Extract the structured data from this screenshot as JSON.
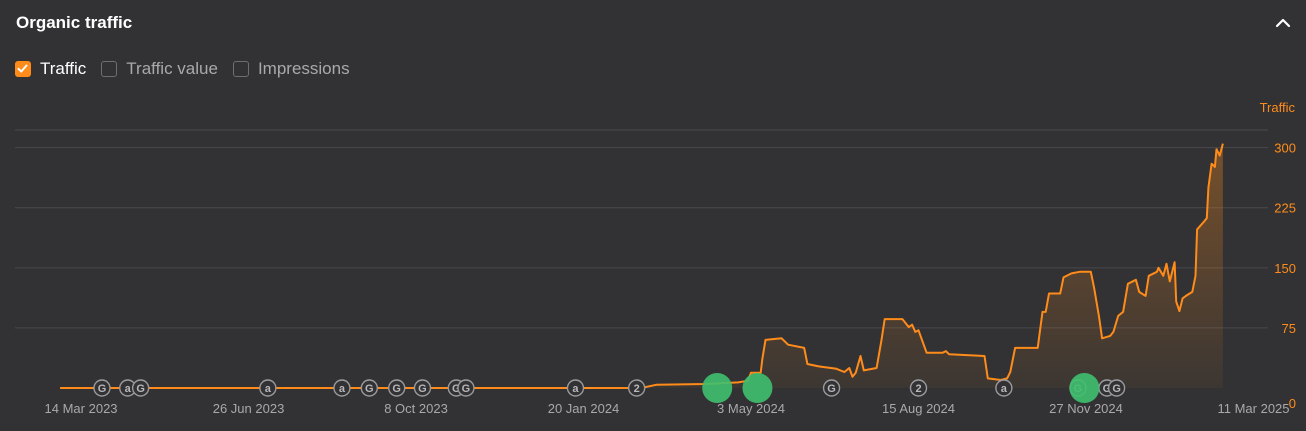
{
  "header": {
    "title": "Organic traffic",
    "collapse_icon": "chevron-up-icon"
  },
  "toggles": [
    {
      "label": "Traffic",
      "checked": true
    },
    {
      "label": "Traffic value",
      "checked": false
    },
    {
      "label": "Impressions",
      "checked": false
    }
  ],
  "colors": {
    "accent": "#ff8c1a",
    "grid": "#4a4a4d",
    "marker_green": "#3ec06e",
    "background": "#323234"
  },
  "chart_data": {
    "type": "area",
    "ylabel": "Traffic",
    "y_axis_position": "right",
    "ylim": [
      0,
      322
    ],
    "y_ticks": [
      0,
      75,
      150,
      225,
      300
    ],
    "x_start": "2023-02-01",
    "x_end": "2025-03-20",
    "x_tick_labels": [
      {
        "date": "2023-03-14",
        "label": "14 Mar 2023"
      },
      {
        "date": "2023-06-26",
        "label": "26 Jun 2023"
      },
      {
        "date": "2023-10-08",
        "label": "8 Oct 2023"
      },
      {
        "date": "2024-01-20",
        "label": "20 Jan 2024"
      },
      {
        "date": "2024-05-03",
        "label": "3 May 2024"
      },
      {
        "date": "2024-08-15",
        "label": "15 Aug 2024"
      },
      {
        "date": "2024-11-27",
        "label": "27 Nov 2024"
      },
      {
        "date": "2025-03-11",
        "label": "11 Mar 2025"
      }
    ],
    "grid": true,
    "series": [
      {
        "name": "Traffic",
        "points": [
          [
            "2023-03-01",
            0
          ],
          [
            "2024-02-25",
            0
          ],
          [
            "2024-03-05",
            4
          ],
          [
            "2024-04-05",
            5
          ],
          [
            "2024-04-25",
            7
          ],
          [
            "2024-05-01",
            9
          ],
          [
            "2024-05-03",
            19
          ],
          [
            "2024-05-09",
            19
          ],
          [
            "2024-05-10",
            36
          ],
          [
            "2024-05-12",
            60
          ],
          [
            "2024-05-22",
            62
          ],
          [
            "2024-05-26",
            54
          ],
          [
            "2024-06-05",
            50
          ],
          [
            "2024-06-07",
            30
          ],
          [
            "2024-06-14",
            27
          ],
          [
            "2024-06-25",
            24
          ],
          [
            "2024-06-30",
            20
          ],
          [
            "2024-07-03",
            25
          ],
          [
            "2024-07-05",
            14
          ],
          [
            "2024-07-07",
            19
          ],
          [
            "2024-07-10",
            40
          ],
          [
            "2024-07-12",
            22
          ],
          [
            "2024-07-20",
            25
          ],
          [
            "2024-07-23",
            60
          ],
          [
            "2024-07-25",
            86
          ],
          [
            "2024-08-05",
            86
          ],
          [
            "2024-08-09",
            76
          ],
          [
            "2024-08-11",
            79
          ],
          [
            "2024-08-13",
            70
          ],
          [
            "2024-08-15",
            72
          ],
          [
            "2024-08-20",
            44
          ],
          [
            "2024-08-30",
            44
          ],
          [
            "2024-09-01",
            46
          ],
          [
            "2024-09-03",
            42
          ],
          [
            "2024-09-25",
            40
          ],
          [
            "2024-09-27",
            12
          ],
          [
            "2024-10-05",
            10
          ],
          [
            "2024-10-09",
            12
          ],
          [
            "2024-10-11",
            20
          ],
          [
            "2024-10-14",
            50
          ],
          [
            "2024-10-28",
            50
          ],
          [
            "2024-10-31",
            95
          ],
          [
            "2024-11-02",
            95
          ],
          [
            "2024-11-04",
            118
          ],
          [
            "2024-11-11",
            118
          ],
          [
            "2024-11-13",
            138
          ],
          [
            "2024-11-18",
            143
          ],
          [
            "2024-11-23",
            145
          ],
          [
            "2024-11-30",
            145
          ],
          [
            "2024-12-02",
            125
          ],
          [
            "2024-12-05",
            90
          ],
          [
            "2024-12-07",
            62
          ],
          [
            "2024-12-12",
            65
          ],
          [
            "2024-12-14",
            70
          ],
          [
            "2024-12-17",
            90
          ],
          [
            "2024-12-20",
            95
          ],
          [
            "2024-12-23",
            130
          ],
          [
            "2024-12-28",
            135
          ],
          [
            "2024-12-30",
            120
          ],
          [
            "2025-01-03",
            115
          ],
          [
            "2025-01-05",
            140
          ],
          [
            "2025-01-10",
            145
          ],
          [
            "2025-01-11",
            150
          ],
          [
            "2025-01-14",
            140
          ],
          [
            "2025-01-16",
            155
          ],
          [
            "2025-01-18",
            133
          ],
          [
            "2025-01-21",
            157
          ],
          [
            "2025-01-22",
            108
          ],
          [
            "2025-01-24",
            96
          ],
          [
            "2025-01-26",
            112
          ],
          [
            "2025-01-28",
            115
          ],
          [
            "2025-02-01",
            120
          ],
          [
            "2025-02-03",
            140
          ],
          [
            "2025-02-04",
            198
          ],
          [
            "2025-02-08",
            207
          ],
          [
            "2025-02-10",
            212
          ],
          [
            "2025-02-11",
            250
          ],
          [
            "2025-02-13",
            280
          ],
          [
            "2025-02-15",
            276
          ],
          [
            "2025-02-16",
            298
          ],
          [
            "2025-02-18",
            290
          ],
          [
            "2025-02-20",
            305
          ]
        ]
      }
    ],
    "event_markers": [
      {
        "date": "2023-03-27",
        "icon": "G",
        "kind": "google-update"
      },
      {
        "date": "2023-04-12",
        "icon": "a",
        "kind": "ahrefs-update"
      },
      {
        "date": "2023-04-20",
        "icon": "G",
        "kind": "google-update"
      },
      {
        "date": "2023-07-08",
        "icon": "a",
        "kind": "ahrefs-update"
      },
      {
        "date": "2023-08-23",
        "icon": "a",
        "kind": "ahrefs-update"
      },
      {
        "date": "2023-09-09",
        "icon": "G",
        "kind": "google-update"
      },
      {
        "date": "2023-09-26",
        "icon": "G",
        "kind": "google-update"
      },
      {
        "date": "2023-10-12",
        "icon": "G",
        "kind": "google-update"
      },
      {
        "date": "2023-11-02",
        "icon": "G",
        "kind": "google-update"
      },
      {
        "date": "2023-11-08",
        "icon": "G",
        "kind": "google-update"
      },
      {
        "date": "2024-01-15",
        "icon": "a",
        "kind": "ahrefs-update"
      },
      {
        "date": "2024-02-22",
        "icon": "2",
        "kind": "count-update"
      },
      {
        "date": "2024-06-22",
        "icon": "G",
        "kind": "google-update"
      },
      {
        "date": "2024-08-15",
        "icon": "2",
        "kind": "count-update"
      },
      {
        "date": "2024-10-07",
        "icon": "a",
        "kind": "ahrefs-update"
      },
      {
        "date": "2024-11-22",
        "icon": "G",
        "kind": "google-update"
      },
      {
        "date": "2024-12-10",
        "icon": "G",
        "kind": "google-update"
      },
      {
        "date": "2024-12-16",
        "icon": "G",
        "kind": "google-update"
      }
    ],
    "highlight_markers": [
      {
        "date": "2024-04-12"
      },
      {
        "date": "2024-05-07"
      },
      {
        "date": "2024-11-26"
      }
    ]
  }
}
